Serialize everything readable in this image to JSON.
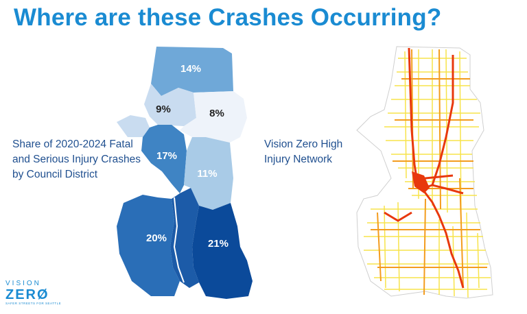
{
  "title": "Where are these Crashes Occurring?",
  "district_caption": "Share of 2020-2024 Fatal and Serious Injury Crashes by Council District",
  "hin_caption": "Vision Zero High Injury Network",
  "districts": [
    {
      "id": "d5",
      "label": "14%",
      "color": "#6fa8d8",
      "text_color": "#ffffff"
    },
    {
      "id": "d6",
      "label": "9%",
      "color": "#c9dcf0",
      "text_color": "#222222"
    },
    {
      "id": "d4",
      "label": "8%",
      "color": "#eef3fa",
      "text_color": "#222222"
    },
    {
      "id": "d7",
      "label": "17%",
      "color": "#3f84c4",
      "text_color": "#ffffff"
    },
    {
      "id": "d3",
      "label": "11%",
      "color": "#a9cbe7",
      "text_color": "#ffffff"
    },
    {
      "id": "d1",
      "label": "20%",
      "color": "#2a6eb7",
      "text_color": "#ffffff"
    },
    {
      "id": "d2",
      "label": "21%",
      "color": "#0b4a9a",
      "text_color": "#ffffff"
    }
  ],
  "logo": {
    "top": "VISION",
    "main": "ZERØ",
    "sub": "SAFER STREETS FOR SEATTLE"
  },
  "colors": {
    "title": "#1a8bd2",
    "caption": "#1f4f8f",
    "hin_high": "#e8380d",
    "hin_mid": "#f39c1e",
    "hin_low": "#f7e34a"
  }
}
